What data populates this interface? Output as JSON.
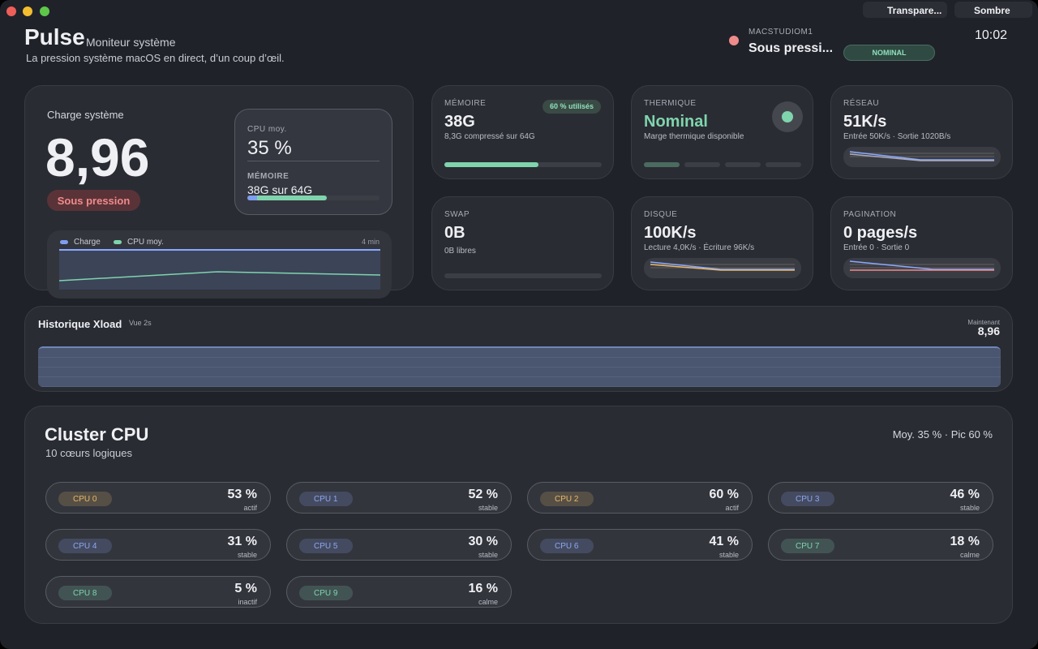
{
  "window": {
    "transparency_button": "Transpare...",
    "theme_button": "Sombre"
  },
  "header": {
    "title": "Pulse",
    "subtitle": "Moniteur système",
    "tagline": "La pression système macOS en direct, d’un coup d’œil.",
    "host": "MACSTUDIOM1",
    "status": "Sous pressi...",
    "badge": "NOMINAL",
    "clock": "10:02"
  },
  "load_card": {
    "label": "Charge système",
    "value": "8,96",
    "status": "Sous pression",
    "cpu_label": "CPU moy.",
    "cpu_value": "35 %",
    "mem_label": "MÉMOIRE",
    "mem_value": "38G sur 64G",
    "legend": [
      "Charge",
      "CPU moy."
    ],
    "window": "4 min"
  },
  "tiles": [
    {
      "label": "MÉMOIRE",
      "value": "38G",
      "detail": "8,3G compressé sur 64G",
      "badge": "60 % utilisés"
    },
    {
      "label": "THERMIQUE",
      "value": "Nominal",
      "detail": "Marge thermique disponible"
    },
    {
      "label": "RÉSEAU",
      "value": "51K/s",
      "detail": "Entrée 50K/s · Sortie 1020B/s"
    },
    {
      "label": "SWAP",
      "value": "0B",
      "detail": "0B libres"
    },
    {
      "label": "DISQUE",
      "value": "100K/s",
      "detail": "Lecture 4,0K/s · Écriture 96K/s"
    },
    {
      "label": "PAGINATION",
      "value": "0 pages/s",
      "detail": "Entrée 0 · Sortie 0"
    }
  ],
  "history": {
    "title": "Historique Xload",
    "view": "Vue 2s",
    "now_label": "Maintenant",
    "now_value": "8,96"
  },
  "cluster": {
    "title": "Cluster CPU",
    "subtitle": "10 cœurs logiques",
    "summary": "Moy. 35 % · Pic 60 %",
    "cores": [
      {
        "name": "CPU 0",
        "value": "53 %",
        "state": "actif",
        "color": "#e8b86a"
      },
      {
        "name": "CPU 1",
        "value": "52 %",
        "state": "stable",
        "color": "#8ea6f0"
      },
      {
        "name": "CPU 2",
        "value": "60 %",
        "state": "actif",
        "color": "#e8b86a"
      },
      {
        "name": "CPU 3",
        "value": "46 %",
        "state": "stable",
        "color": "#8ea6f0"
      },
      {
        "name": "CPU 4",
        "value": "31 %",
        "state": "stable",
        "color": "#8ea6f0"
      },
      {
        "name": "CPU 5",
        "value": "30 %",
        "state": "stable",
        "color": "#8ea6f0"
      },
      {
        "name": "CPU 6",
        "value": "41 %",
        "state": "stable",
        "color": "#8ea6f0"
      },
      {
        "name": "CPU 7",
        "value": "18 %",
        "state": "calme",
        "color": "#7fd4ad"
      },
      {
        "name": "CPU 8",
        "value": "5 %",
        "state": "inactif",
        "color": "#7fd4ad"
      },
      {
        "name": "CPU 9",
        "value": "16 %",
        "state": "calme",
        "color": "#7fd4ad"
      }
    ]
  }
}
